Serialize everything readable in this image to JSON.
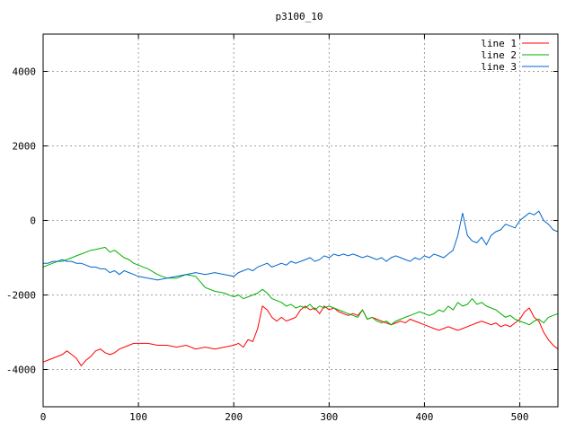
{
  "chart_data": {
    "type": "line",
    "title": "p3100_10",
    "xlabel": "",
    "ylabel": "",
    "xlim": [
      0,
      540
    ],
    "ylim": [
      -5000,
      5000
    ],
    "xticks": [
      0,
      100,
      200,
      300,
      400,
      500
    ],
    "yticks": [
      -4000,
      -2000,
      0,
      2000,
      4000
    ],
    "xtick_labels": [
      "0",
      "100",
      "200",
      "300",
      "400",
      "500"
    ],
    "ytick_labels": [
      "-4000",
      "-2000",
      "0",
      "2000",
      "4000"
    ],
    "grid": true,
    "legend_position": "top-right",
    "series": [
      {
        "name": "line 1",
        "color": "#ff0000",
        "x": [
          0,
          5,
          10,
          15,
          20,
          25,
          30,
          35,
          40,
          45,
          50,
          55,
          60,
          65,
          70,
          75,
          80,
          85,
          90,
          95,
          100,
          110,
          120,
          130,
          140,
          150,
          160,
          170,
          180,
          190,
          200,
          205,
          210,
          215,
          220,
          225,
          230,
          235,
          240,
          245,
          250,
          255,
          260,
          265,
          270,
          275,
          280,
          285,
          290,
          295,
          300,
          305,
          310,
          315,
          320,
          325,
          330,
          335,
          340,
          345,
          350,
          355,
          360,
          365,
          370,
          375,
          380,
          385,
          390,
          395,
          400,
          405,
          410,
          415,
          420,
          425,
          430,
          435,
          440,
          445,
          450,
          455,
          460,
          465,
          470,
          475,
          480,
          485,
          490,
          495,
          500,
          505,
          510,
          515,
          520,
          525,
          530,
          535,
          540
        ],
        "y": [
          -3800,
          -3750,
          -3700,
          -3650,
          -3600,
          -3500,
          -3600,
          -3700,
          -3900,
          -3750,
          -3650,
          -3500,
          -3450,
          -3550,
          -3600,
          -3550,
          -3450,
          -3400,
          -3350,
          -3300,
          -3300,
          -3300,
          -3350,
          -3350,
          -3400,
          -3350,
          -3450,
          -3400,
          -3450,
          -3400,
          -3350,
          -3300,
          -3400,
          -3200,
          -3250,
          -2900,
          -2300,
          -2400,
          -2600,
          -2700,
          -2600,
          -2700,
          -2650,
          -2600,
          -2400,
          -2300,
          -2400,
          -2350,
          -2500,
          -2300,
          -2400,
          -2350,
          -2450,
          -2500,
          -2550,
          -2500,
          -2550,
          -2400,
          -2650,
          -2600,
          -2650,
          -2700,
          -2750,
          -2800,
          -2750,
          -2700,
          -2750,
          -2650,
          -2700,
          -2750,
          -2800,
          -2850,
          -2900,
          -2950,
          -2900,
          -2850,
          -2900,
          -2950,
          -2900,
          -2850,
          -2800,
          -2750,
          -2700,
          -2750,
          -2800,
          -2750,
          -2850,
          -2800,
          -2850,
          -2750,
          -2650,
          -2450,
          -2350,
          -2600,
          -2700,
          -3000,
          -3200,
          -3350,
          -3450
        ]
      },
      {
        "name": "line 2",
        "color": "#00b000",
        "x": [
          0,
          5,
          10,
          15,
          20,
          25,
          30,
          35,
          40,
          45,
          50,
          55,
          60,
          65,
          70,
          75,
          80,
          85,
          90,
          95,
          100,
          110,
          120,
          130,
          140,
          150,
          160,
          170,
          180,
          190,
          200,
          205,
          210,
          215,
          220,
          225,
          230,
          235,
          240,
          245,
          250,
          255,
          260,
          265,
          270,
          275,
          280,
          285,
          290,
          295,
          300,
          305,
          310,
          315,
          320,
          325,
          330,
          335,
          340,
          345,
          350,
          355,
          360,
          365,
          370,
          375,
          380,
          385,
          390,
          395,
          400,
          405,
          410,
          415,
          420,
          425,
          430,
          435,
          440,
          445,
          450,
          455,
          460,
          465,
          470,
          475,
          480,
          485,
          490,
          495,
          500,
          505,
          510,
          515,
          520,
          525,
          530,
          535,
          540
        ],
        "y": [
          -1250,
          -1200,
          -1150,
          -1100,
          -1100,
          -1050,
          -1000,
          -950,
          -900,
          -850,
          -800,
          -780,
          -750,
          -720,
          -850,
          -800,
          -900,
          -1000,
          -1050,
          -1150,
          -1200,
          -1300,
          -1450,
          -1550,
          -1550,
          -1450,
          -1500,
          -1800,
          -1900,
          -1950,
          -2050,
          -2000,
          -2100,
          -2050,
          -2000,
          -1950,
          -1850,
          -1950,
          -2100,
          -2150,
          -2200,
          -2300,
          -2250,
          -2350,
          -2300,
          -2350,
          -2250,
          -2400,
          -2300,
          -2350,
          -2300,
          -2350,
          -2400,
          -2450,
          -2500,
          -2550,
          -2600,
          -2400,
          -2650,
          -2600,
          -2700,
          -2750,
          -2700,
          -2800,
          -2700,
          -2650,
          -2600,
          -2550,
          -2500,
          -2450,
          -2500,
          -2550,
          -2500,
          -2400,
          -2450,
          -2300,
          -2400,
          -2200,
          -2300,
          -2250,
          -2100,
          -2250,
          -2200,
          -2300,
          -2350,
          -2400,
          -2500,
          -2600,
          -2550,
          -2650,
          -2700,
          -2750,
          -2800,
          -2700,
          -2650,
          -2750,
          -2600,
          -2550,
          -2500
        ]
      },
      {
        "name": "line 3",
        "color": "#0066cc",
        "x": [
          0,
          5,
          10,
          15,
          20,
          25,
          30,
          35,
          40,
          45,
          50,
          55,
          60,
          65,
          70,
          75,
          80,
          85,
          90,
          95,
          100,
          110,
          120,
          130,
          140,
          150,
          160,
          170,
          180,
          190,
          200,
          205,
          210,
          215,
          220,
          225,
          230,
          235,
          240,
          245,
          250,
          255,
          260,
          265,
          270,
          275,
          280,
          285,
          290,
          295,
          300,
          305,
          310,
          315,
          320,
          325,
          330,
          335,
          340,
          345,
          350,
          355,
          360,
          365,
          370,
          375,
          380,
          385,
          390,
          395,
          400,
          405,
          410,
          415,
          420,
          425,
          430,
          435,
          440,
          445,
          450,
          455,
          460,
          465,
          470,
          475,
          480,
          485,
          490,
          495,
          500,
          505,
          510,
          515,
          520,
          525,
          530,
          535,
          540
        ],
        "y": [
          -1150,
          -1150,
          -1100,
          -1100,
          -1050,
          -1100,
          -1100,
          -1150,
          -1150,
          -1200,
          -1250,
          -1250,
          -1300,
          -1300,
          -1400,
          -1350,
          -1450,
          -1350,
          -1400,
          -1450,
          -1500,
          -1550,
          -1600,
          -1550,
          -1500,
          -1450,
          -1400,
          -1450,
          -1400,
          -1450,
          -1500,
          -1400,
          -1350,
          -1300,
          -1350,
          -1250,
          -1200,
          -1150,
          -1250,
          -1200,
          -1150,
          -1200,
          -1100,
          -1150,
          -1100,
          -1050,
          -1000,
          -1100,
          -1050,
          -950,
          -1000,
          -900,
          -950,
          -900,
          -950,
          -900,
          -950,
          -1000,
          -950,
          -1000,
          -1050,
          -1000,
          -1100,
          -1000,
          -950,
          -1000,
          -1050,
          -1100,
          -1000,
          -1050,
          -950,
          -1000,
          -900,
          -950,
          -1000,
          -900,
          -800,
          -400,
          200,
          -400,
          -550,
          -600,
          -450,
          -650,
          -400,
          -300,
          -250,
          -100,
          -150,
          -200,
          0,
          100,
          200,
          150,
          250,
          0,
          -100,
          -250,
          -300
        ]
      }
    ]
  }
}
